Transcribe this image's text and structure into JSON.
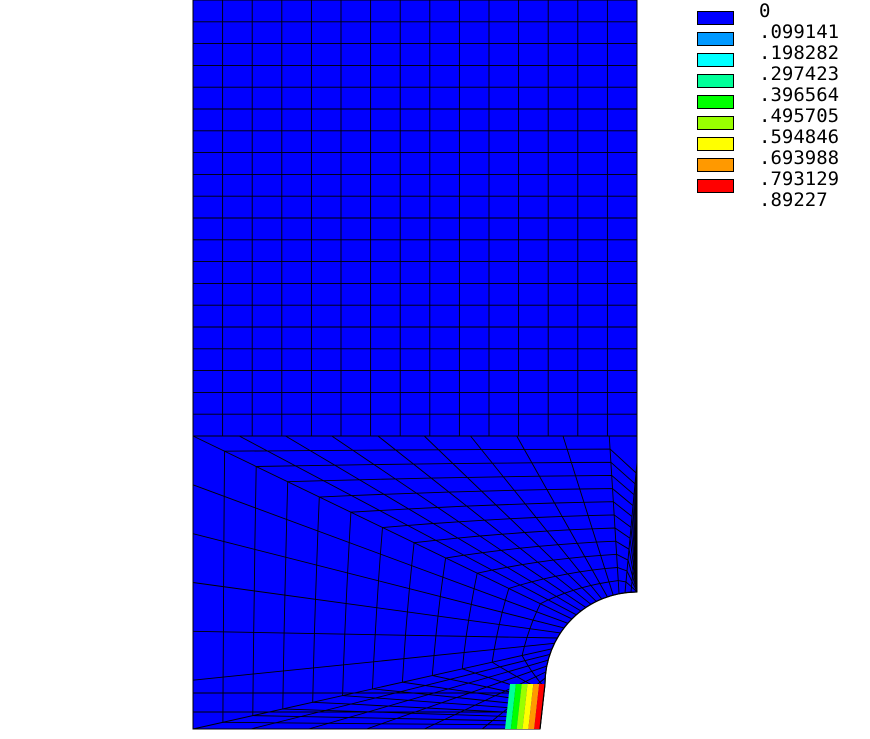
{
  "legend": {
    "labels": [
      "0",
      ".099141",
      ".198282",
      ".297423",
      ".396564",
      ".495705",
      ".594846",
      ".693988",
      ".793129",
      ".89227"
    ],
    "colors": [
      "#0000ff",
      "#0099ff",
      "#00ffff",
      "#00ff99",
      "#00ff00",
      "#99ff00",
      "#ffff00",
      "#ff9900",
      "#ff0000"
    ]
  },
  "colors": {
    "mesh_fill": "#0000ff",
    "mesh_lines": "#000000",
    "background": "#ffffff"
  }
}
